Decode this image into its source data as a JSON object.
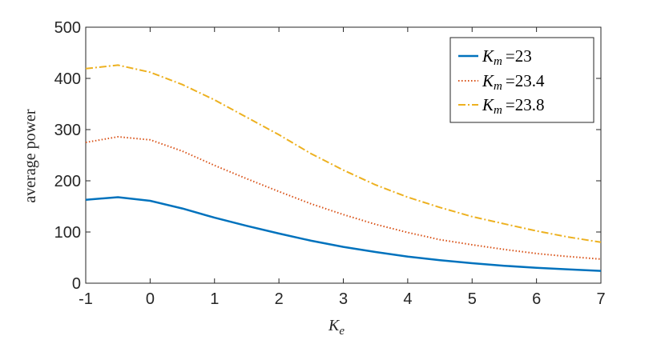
{
  "chart_data": {
    "type": "line",
    "xlabel_main": "K",
    "xlabel_sub": "e",
    "ylabel": "average power",
    "xlim": [
      -1,
      7
    ],
    "ylim": [
      0,
      500
    ],
    "xticks": [
      -1,
      0,
      1,
      2,
      3,
      4,
      5,
      6,
      7
    ],
    "xtick_labels": [
      "-1",
      "0",
      "1",
      "2",
      "3",
      "4",
      "5",
      "6",
      "7"
    ],
    "yticks": [
      0,
      100,
      200,
      300,
      400,
      500
    ],
    "ytick_labels": [
      "0",
      "100",
      "200",
      "300",
      "400",
      "500"
    ],
    "grid": false,
    "legend_position": "top-right",
    "x": [
      -1,
      -0.5,
      0,
      0.5,
      1,
      1.5,
      2,
      2.5,
      3,
      3.5,
      4,
      4.5,
      5,
      5.5,
      6,
      6.5,
      7
    ],
    "series": [
      {
        "legend_main": "K",
        "legend_sub": "m",
        "legend_value": "=23",
        "color": "#0072BD",
        "dash": "solid",
        "values": [
          163,
          168,
          161,
          146,
          128,
          112,
          97,
          83,
          71,
          61,
          52,
          45,
          39,
          34,
          30,
          27,
          24
        ]
      },
      {
        "legend_main": "K",
        "legend_sub": "m",
        "legend_value": "=23.4",
        "color": "#D95319",
        "dash": "dotted",
        "values": [
          275,
          286,
          280,
          258,
          230,
          204,
          179,
          155,
          134,
          115,
          99,
          85,
          75,
          66,
          58,
          52,
          47
        ]
      },
      {
        "legend_main": "K",
        "legend_sub": "m",
        "legend_value": "=23.8",
        "color": "#EDB120",
        "dash": "dashdot",
        "values": [
          419,
          426,
          412,
          388,
          358,
          324,
          290,
          253,
          221,
          192,
          168,
          148,
          130,
          116,
          102,
          90,
          80
        ]
      }
    ]
  }
}
